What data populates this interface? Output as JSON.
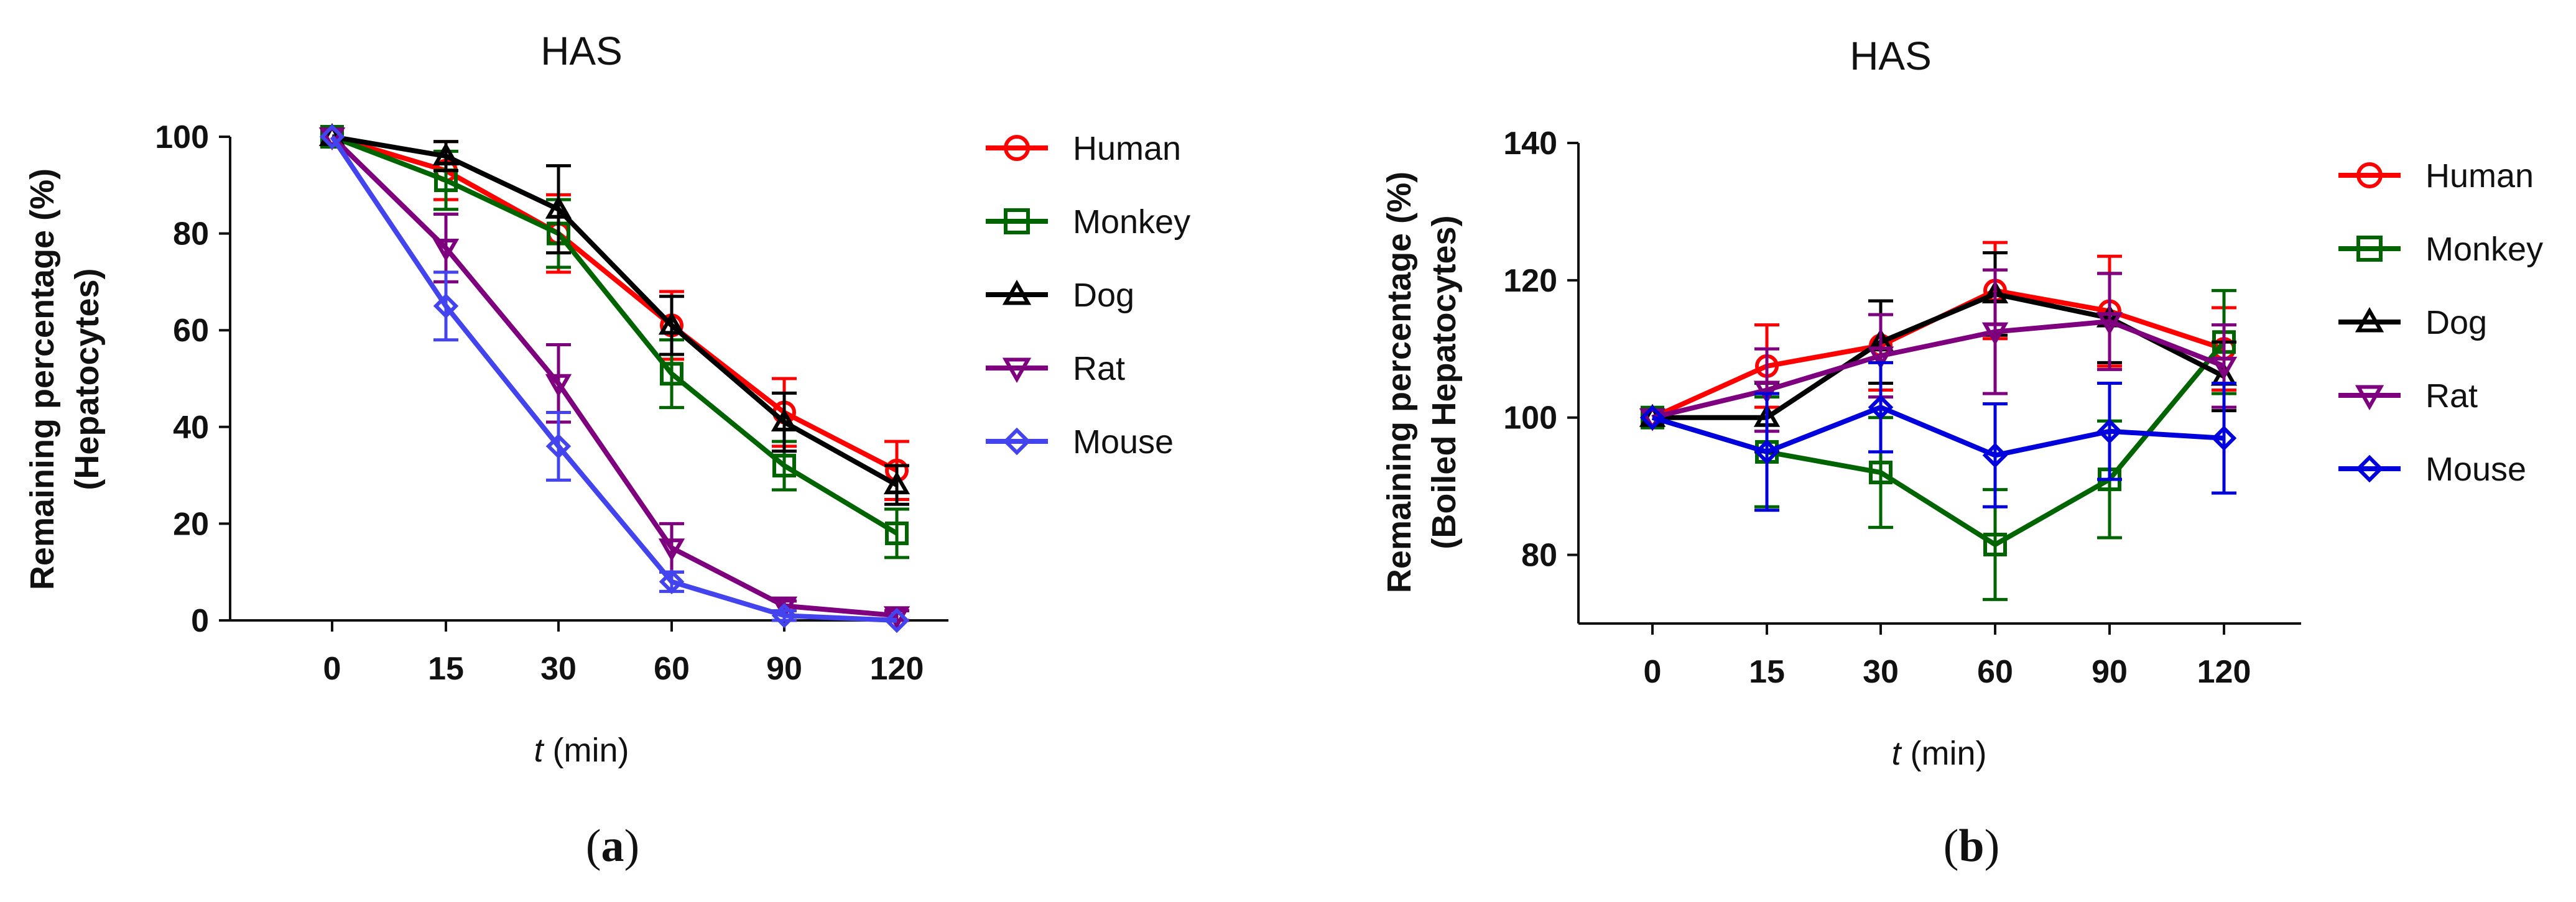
{
  "chart_data": [
    {
      "type": "line",
      "panel_label_prefix": "(",
      "panel_label_letter": "a",
      "panel_label_suffix": ")",
      "title": "HAS",
      "ylabel_line1": "Remaining percentage (%)",
      "ylabel_line2": "(Hepatocytes)",
      "xlabel_var": "t",
      "xlabel_unit": " (min)",
      "categories": [
        "0",
        "15",
        "30",
        "60",
        "90",
        "120"
      ],
      "ylim": [
        0,
        100
      ],
      "yticks": [
        0,
        20,
        40,
        60,
        80,
        100
      ],
      "legend_position": "right",
      "series": [
        {
          "name": "Human",
          "color": "#ff0000",
          "marker": "circle",
          "values": [
            100,
            93,
            80,
            61,
            43,
            31
          ],
          "err": [
            0,
            6,
            8,
            7,
            7,
            6
          ]
        },
        {
          "name": "Monkey",
          "color": "#006400",
          "marker": "square",
          "values": [
            100,
            91,
            80,
            51,
            32,
            18
          ],
          "err": [
            0,
            6,
            7,
            7,
            5,
            5
          ]
        },
        {
          "name": "Dog",
          "color": "#000000",
          "marker": "triangle-up",
          "values": [
            100,
            96,
            85,
            61,
            41,
            28
          ],
          "err": [
            0,
            3,
            9,
            6,
            6,
            4
          ]
        },
        {
          "name": "Rat",
          "color": "#7f007f",
          "marker": "triangle-down",
          "values": [
            100,
            77,
            49,
            15,
            3,
            1
          ],
          "err": [
            0,
            7,
            8,
            5,
            1,
            1
          ]
        },
        {
          "name": "Mouse",
          "color": "#4444ee",
          "marker": "diamond",
          "values": [
            100,
            65,
            36,
            8,
            1,
            0
          ],
          "err": [
            0,
            7,
            7,
            2,
            1,
            0
          ]
        }
      ]
    },
    {
      "type": "line",
      "panel_label_prefix": "(",
      "panel_label_letter": "b",
      "panel_label_suffix": ")",
      "title": "HAS",
      "ylabel_line1": "Remaining percentage (%)",
      "ylabel_line2": "(Boiled Hepatocytes)",
      "xlabel_var": "t",
      "xlabel_unit": " (min)",
      "categories": [
        "0",
        "15",
        "30",
        "60",
        "90",
        "120"
      ],
      "ylim": [
        70,
        140
      ],
      "yticks": [
        80,
        100,
        120,
        140
      ],
      "legend_position": "right",
      "series": [
        {
          "name": "Human",
          "color": "#ff0000",
          "marker": "circle",
          "values": [
            100,
            107.5,
            110.5,
            118.5,
            115.5,
            110
          ],
          "err": [
            0,
            6,
            6.5,
            7,
            8,
            6
          ]
        },
        {
          "name": "Monkey",
          "color": "#006400",
          "marker": "square",
          "values": [
            100,
            95,
            92,
            81.5,
            91,
            111
          ],
          "err": [
            0,
            8,
            8,
            8,
            8.5,
            7.5
          ]
        },
        {
          "name": "Dog",
          "color": "#000000",
          "marker": "triangle-up",
          "values": [
            100,
            100,
            111,
            118,
            114.5,
            106
          ],
          "err": [
            0,
            5,
            6,
            6,
            6.5,
            5
          ]
        },
        {
          "name": "Rat",
          "color": "#7f007f",
          "marker": "triangle-down",
          "values": [
            100,
            104,
            109,
            112.5,
            114,
            107.5
          ],
          "err": [
            0,
            6,
            6,
            9,
            7,
            6
          ]
        },
        {
          "name": "Mouse",
          "color": "#0000dd",
          "marker": "diamond",
          "values": [
            100,
            95,
            101.5,
            94.5,
            98,
            97
          ],
          "err": [
            0,
            8.5,
            6.5,
            7.5,
            7,
            8
          ]
        }
      ]
    }
  ]
}
